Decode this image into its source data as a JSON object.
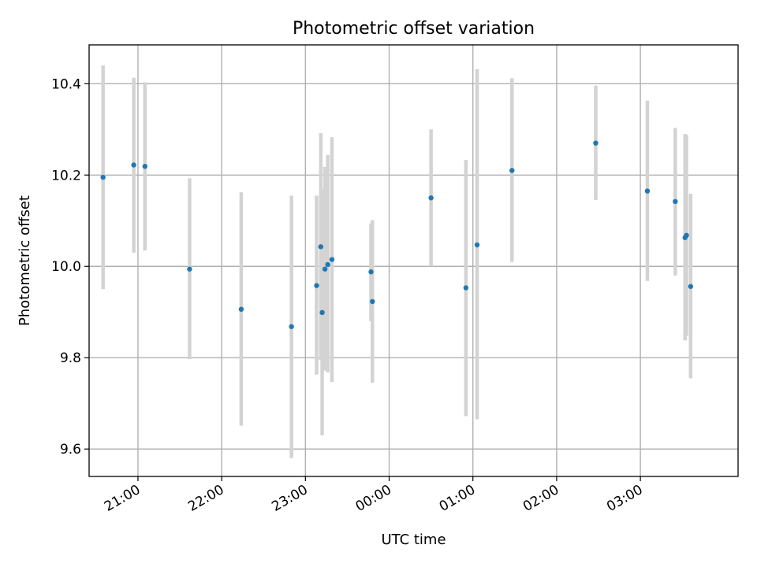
{
  "chart_data": {
    "type": "scatter",
    "title": "Photometric offset variation",
    "xlabel": "UTC time",
    "ylabel": "Photometric offset",
    "x_ticks": [
      "21:00",
      "22:00",
      "23:00",
      "00:00",
      "01:00",
      "02:00",
      "03:00"
    ],
    "y_ticks": [
      "9.6",
      "9.8",
      "10.0",
      "10.2",
      "10.4"
    ],
    "x_tick_values": [
      "21:00",
      "22:00",
      "23:00",
      "00:00",
      "01:00",
      "02:00",
      "03:00"
    ],
    "y_tick_values": [
      9.6,
      9.8,
      10.0,
      10.2,
      10.4
    ],
    "xlim": [
      "20:25",
      "04:10"
    ],
    "ylim": [
      9.54,
      10.485
    ],
    "grid": true,
    "colors": {
      "marker": "#1f77b4",
      "errorbar": "#d3d3d3",
      "grid": "#b0b0b0"
    },
    "series": [
      {
        "marker": "point",
        "points": [
          {
            "x": "20:35",
            "y": 10.195,
            "ylow": 9.95,
            "yhigh": 10.44
          },
          {
            "x": "20:57",
            "y": 10.222,
            "ylow": 10.03,
            "yhigh": 10.413
          },
          {
            "x": "21:05",
            "y": 10.219,
            "ylow": 10.035,
            "yhigh": 10.403
          },
          {
            "x": "21:37",
            "y": 9.994,
            "ylow": 9.797,
            "yhigh": 10.193
          },
          {
            "x": "22:14",
            "y": 9.906,
            "ylow": 9.651,
            "yhigh": 10.162
          },
          {
            "x": "22:50",
            "y": 9.868,
            "ylow": 9.58,
            "yhigh": 10.155
          },
          {
            "x": "23:08",
            "y": 9.958,
            "ylow": 9.763,
            "yhigh": 10.155
          },
          {
            "x": "23:11",
            "y": 10.043,
            "ylow": 9.795,
            "yhigh": 10.292
          },
          {
            "x": "23:12",
            "y": 9.899,
            "ylow": 9.63,
            "yhigh": 10.17
          },
          {
            "x": "23:14",
            "y": 9.994,
            "ylow": 9.772,
            "yhigh": 10.218
          },
          {
            "x": "23:16",
            "y": 10.004,
            "ylow": 9.768,
            "yhigh": 10.244
          },
          {
            "x": "23:19",
            "y": 10.015,
            "ylow": 9.747,
            "yhigh": 10.283
          },
          {
            "x": "23:47",
            "y": 9.988,
            "ylow": 9.88,
            "yhigh": 10.094
          },
          {
            "x": "23:48",
            "y": 9.923,
            "ylow": 9.745,
            "yhigh": 10.101
          },
          {
            "x": "00:30",
            "y": 10.15,
            "ylow": 10.0,
            "yhigh": 10.3
          },
          {
            "x": "00:55",
            "y": 9.953,
            "ylow": 9.672,
            "yhigh": 10.233
          },
          {
            "x": "01:03",
            "y": 10.047,
            "ylow": 9.665,
            "yhigh": 10.432
          },
          {
            "x": "01:28",
            "y": 10.21,
            "ylow": 10.01,
            "yhigh": 10.412
          },
          {
            "x": "02:28",
            "y": 10.27,
            "ylow": 10.145,
            "yhigh": 10.396
          },
          {
            "x": "03:05",
            "y": 10.165,
            "ylow": 9.968,
            "yhigh": 10.363
          },
          {
            "x": "03:25",
            "y": 10.142,
            "ylow": 9.98,
            "yhigh": 10.303
          },
          {
            "x": "03:32",
            "y": 10.063,
            "ylow": 9.838,
            "yhigh": 10.29
          },
          {
            "x": "03:33",
            "y": 10.068,
            "ylow": 9.848,
            "yhigh": 10.288
          },
          {
            "x": "03:36",
            "y": 9.956,
            "ylow": 9.755,
            "yhigh": 10.159
          }
        ]
      }
    ]
  }
}
